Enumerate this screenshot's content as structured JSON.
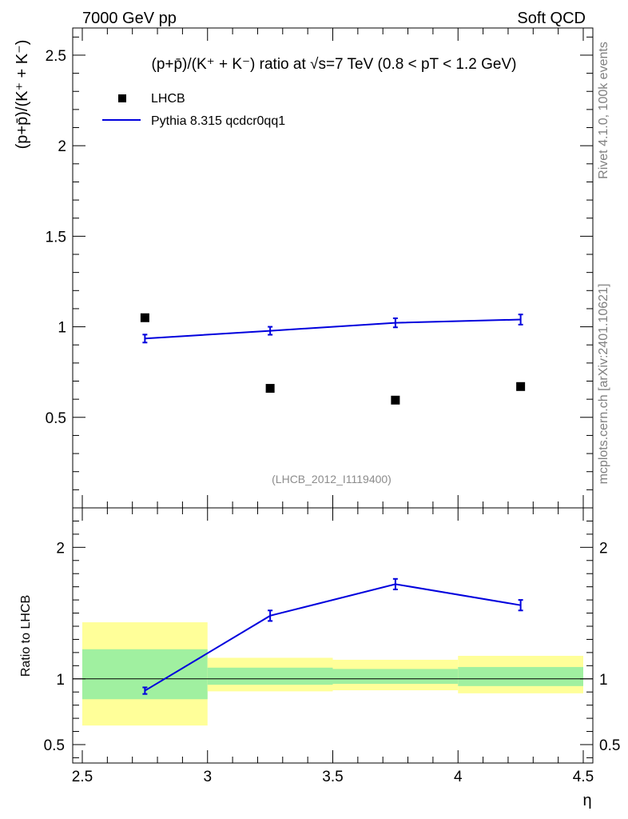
{
  "header": {
    "left": "7000 GeV pp",
    "right": "Soft QCD"
  },
  "side": {
    "rivet": "Rivet 4.1.0,  100k events",
    "mcplots": "mcplots.cern.ch [arXiv:2401.10621]"
  },
  "colors": {
    "mc": "#0000dd",
    "data": "#000000",
    "band_inner": "#a0f0a0",
    "band_outer": "#ffff99",
    "watermark": "#8c8c8c"
  },
  "chart_data": [
    {
      "type": "scatter",
      "panel": "main",
      "title": "(p+p̄)/(K⁺ + K⁻) ratio at √s=7 TeV (0.8 < pT < 1.2 GeV)",
      "ylabel": "(p+p̄)/(K⁺ + K⁻)",
      "xlim": [
        2.5,
        4.5
      ],
      "ylim": [
        0,
        2.65
      ],
      "yticks": [
        {
          "value": 0.5,
          "label": "0.5"
        },
        {
          "value": 1,
          "label": "1"
        },
        {
          "value": 1.5,
          "label": "1.5"
        },
        {
          "value": 2,
          "label": "2"
        },
        {
          "value": 2.5,
          "label": "2.5"
        }
      ],
      "legend": [
        "LHCB",
        "Pythia 8.315 qcdcr0qq1"
      ],
      "watermark": "(LHCB_2012_I1119400)",
      "series": [
        {
          "name": "LHCB",
          "kind": "data",
          "x": [
            2.75,
            3.25,
            3.75,
            4.25
          ],
          "y": [
            1.05,
            0.66,
            0.595,
            0.67
          ]
        },
        {
          "name": "Pythia 8.315 qcdcr0qq1",
          "kind": "mc",
          "x": [
            2.75,
            3.25,
            3.75,
            4.25
          ],
          "y": [
            0.935,
            0.978,
            1.022,
            1.04
          ],
          "yerr": [
            0.022,
            0.022,
            0.025,
            0.028
          ]
        }
      ]
    },
    {
      "type": "line",
      "panel": "ratio",
      "ylabel": "Ratio to LHCB",
      "xlabel": "η",
      "xlim": [
        2.5,
        4.5
      ],
      "ylim": [
        0.36,
        2.3
      ],
      "xticks": [
        {
          "value": 2.5,
          "label": "2.5"
        },
        {
          "value": 3,
          "label": "3"
        },
        {
          "value": 3.5,
          "label": "3.5"
        },
        {
          "value": 4,
          "label": "4"
        },
        {
          "value": 4.5,
          "label": "4.5"
        }
      ],
      "yticks": [
        {
          "value": 0.5,
          "label": "0.5"
        },
        {
          "value": 1,
          "label": "1"
        },
        {
          "value": 2,
          "label": "2"
        }
      ],
      "bands": [
        {
          "x0": 2.5,
          "x1": 3.0,
          "inner": [
            0.845,
            1.225
          ],
          "outer": [
            0.645,
            1.43
          ]
        },
        {
          "x0": 3.0,
          "x1": 3.5,
          "inner": [
            0.955,
            1.085
          ],
          "outer": [
            0.905,
            1.16
          ]
        },
        {
          "x0": 3.5,
          "x1": 4.0,
          "inner": [
            0.962,
            1.075
          ],
          "outer": [
            0.913,
            1.145
          ]
        },
        {
          "x0": 4.0,
          "x1": 4.5,
          "inner": [
            0.945,
            1.09
          ],
          "outer": [
            0.89,
            1.175
          ]
        }
      ],
      "series": [
        {
          "name": "Pythia 8.315 qcdcr0qq1",
          "x": [
            2.75,
            3.25,
            3.75,
            4.25
          ],
          "y": [
            0.91,
            1.48,
            1.72,
            1.56
          ],
          "yerr": [
            0.025,
            0.04,
            0.04,
            0.04
          ]
        }
      ]
    }
  ]
}
